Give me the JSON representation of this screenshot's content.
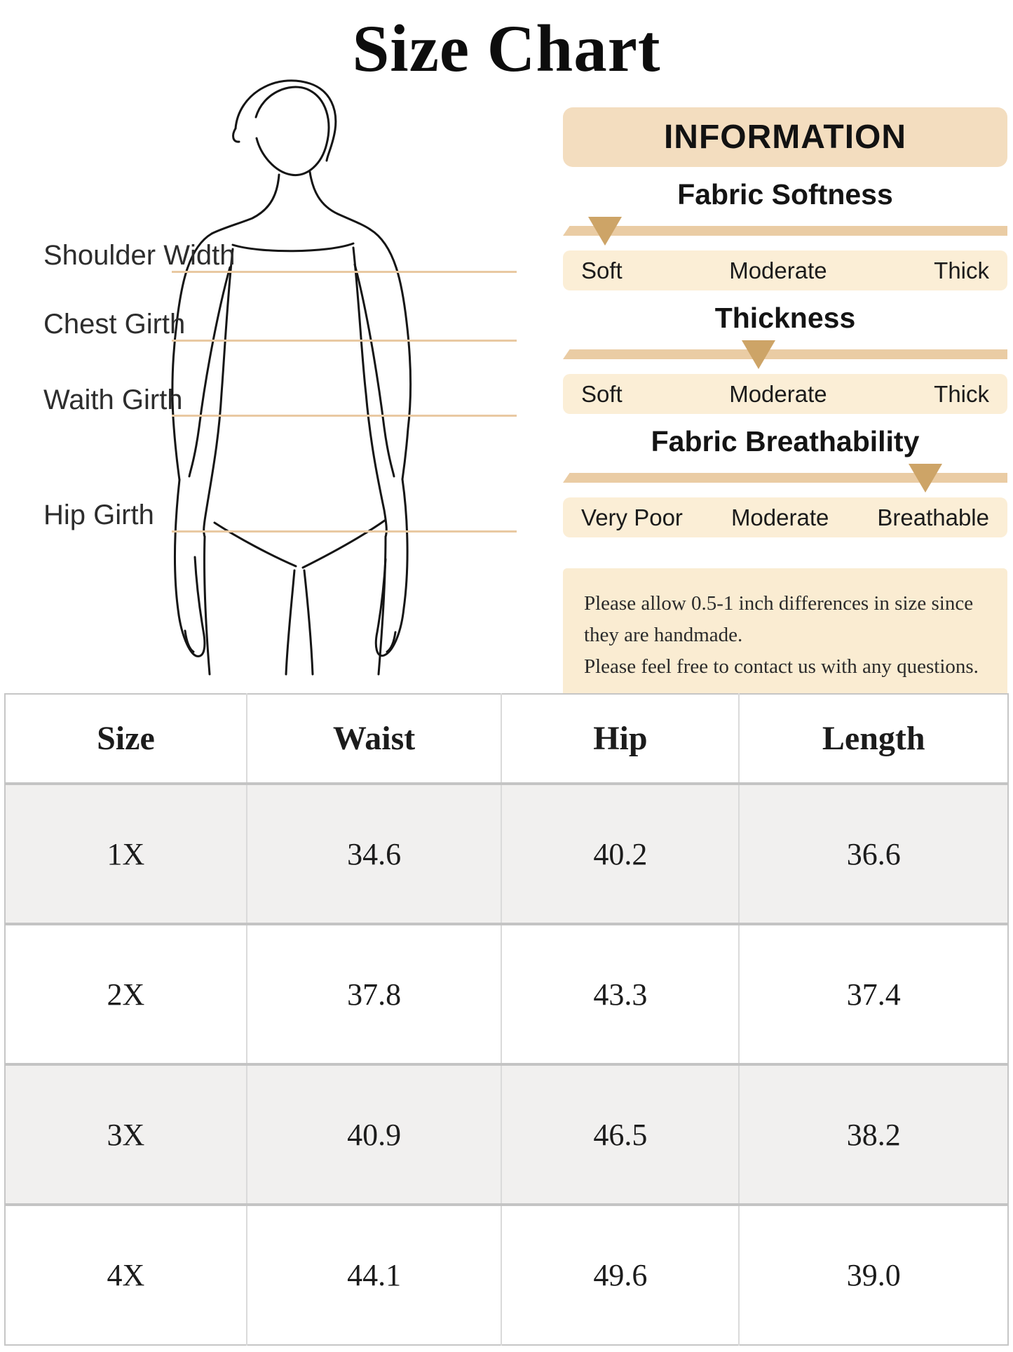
{
  "page": {
    "title": "Size Chart"
  },
  "figure": {
    "measure_labels": [
      "Shoulder Width",
      "Chest Girth",
      "Waith Girth",
      "Hip Girth"
    ]
  },
  "info": {
    "header_label": "INFORMATION",
    "sliders": [
      {
        "heading": "Fabric Softness",
        "labels": [
          "Soft",
          "Moderate",
          "Thick"
        ],
        "indicator_pct": 9.5
      },
      {
        "heading": "Thickness",
        "labels": [
          "Soft",
          "Moderate",
          "Thick"
        ],
        "indicator_pct": 44
      },
      {
        "heading": "Fabric Breathability",
        "labels": [
          "Very Poor",
          "Moderate",
          "Breathable"
        ],
        "indicator_pct": 81.5
      }
    ],
    "note_lines": [
      "Please allow 0.5-1 inch differences in size since they are handmade.",
      "Please feel free to contact us with any questions."
    ]
  },
  "size_table": {
    "headers": [
      "Size",
      "Waist",
      "Hip",
      "Length"
    ],
    "rows": [
      [
        "1X",
        "34.6",
        "40.2",
        "36.6"
      ],
      [
        "2X",
        "37.8",
        "43.3",
        "37.4"
      ],
      [
        "3X",
        "40.9",
        "46.5",
        "38.2"
      ],
      [
        "4X",
        "44.1",
        "49.6",
        "39.0"
      ]
    ]
  },
  "colors": {
    "info_panel": "#f3ddbf",
    "slider_bar": "#eacca4",
    "indicator": "#cda467",
    "label_row": "#fbeed6",
    "note_box": "#faecd2",
    "measure_line": "#e9c9a2",
    "table_alt_row": "#f1f0ef",
    "table_border": "#c6c6c6"
  }
}
